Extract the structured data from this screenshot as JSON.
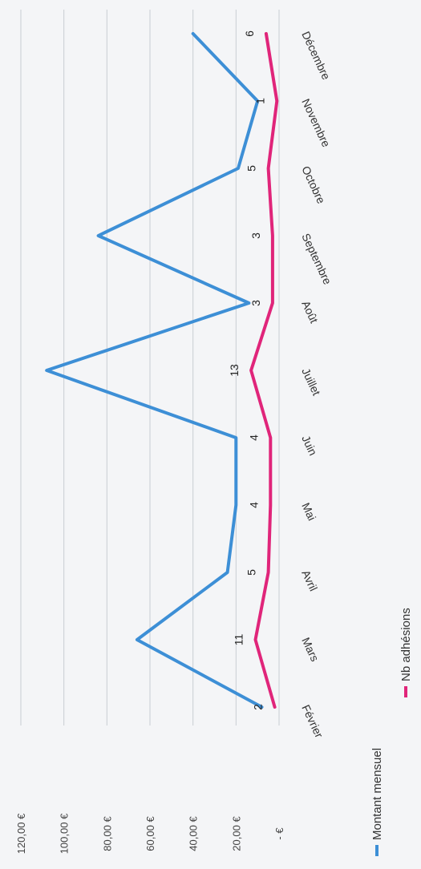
{
  "chart_data": {
    "type": "line",
    "categories": [
      "Février",
      "Mars",
      "Avril",
      "Mai",
      "Juin",
      "Juillet",
      "Août",
      "Septembre",
      "Octobre",
      "Novembre",
      "Décembre"
    ],
    "y_tick_labels": [
      "- €",
      "20,00 €",
      "40,00 €",
      "60,00 €",
      "80,00 €",
      "100,00 €",
      "120,00 €"
    ],
    "ylim": [
      0,
      120
    ],
    "grid": true,
    "legend_position": "bottom",
    "series": [
      {
        "name": "Montant mensuel",
        "color": "#3d8fd6",
        "values": [
          8,
          66,
          24,
          20,
          20,
          108,
          14,
          84,
          19,
          10,
          40
        ]
      },
      {
        "name": "Nb adhésions",
        "color": "#e0257a",
        "data_labels": [
          "2",
          "11",
          "5",
          "4",
          "4",
          "13",
          "3",
          "3",
          "5",
          "1",
          "6"
        ],
        "values": [
          2,
          11,
          5,
          4,
          4,
          13,
          3,
          3,
          5,
          1,
          6
        ]
      }
    ]
  }
}
